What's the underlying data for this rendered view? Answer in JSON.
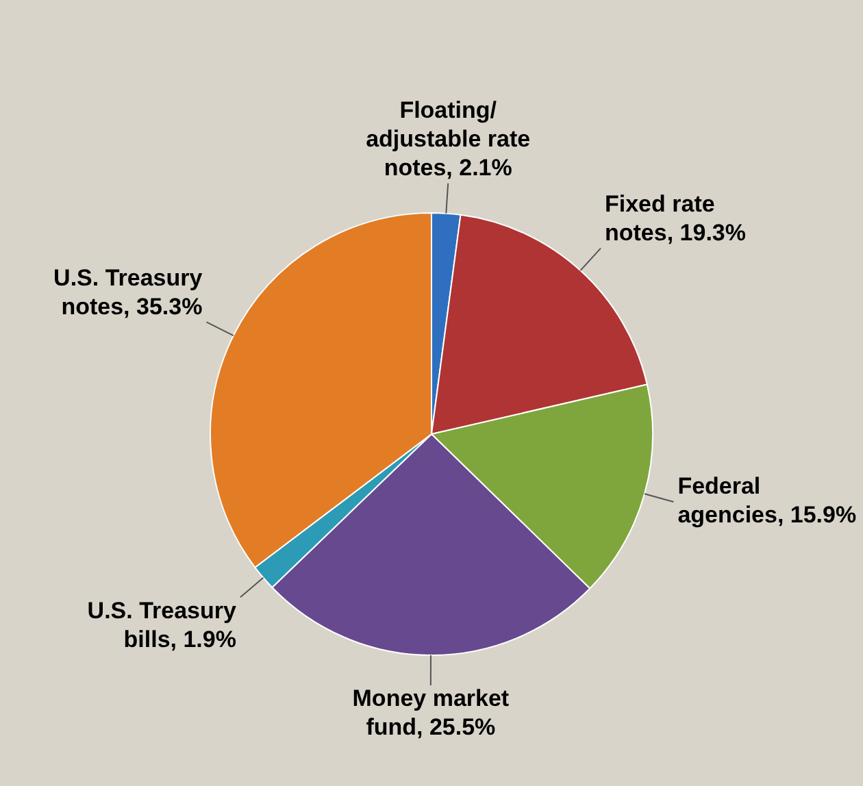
{
  "chart_data": {
    "type": "pie",
    "categories": [
      "Floating/adjustable rate notes",
      "Fixed rate notes",
      "Federal agencies",
      "Money market fund",
      "U.S. Treasury bills",
      "U.S. Treasury notes"
    ],
    "values": [
      2.1,
      19.3,
      15.9,
      25.5,
      1.9,
      35.3
    ],
    "value_labels": [
      "2.1%",
      "19.3%",
      "15.9%",
      "25.5%",
      "1.9%",
      "35.3%"
    ],
    "colors": [
      "#2f6fc0",
      "#b03434",
      "#7ea63c",
      "#67498f",
      "#2d9bb6",
      "#e27d26"
    ],
    "legend": false
  }
}
